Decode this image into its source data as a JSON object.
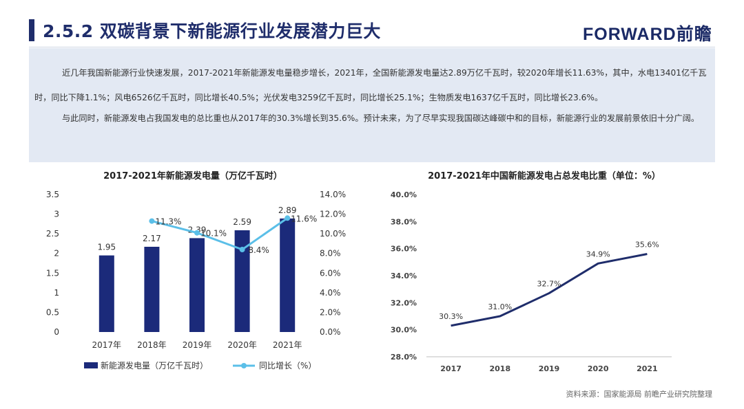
{
  "header": {
    "title": "2.5.2 双碳背景下新能源行业发展潜力巨大",
    "logo": "FORWARD前瞻"
  },
  "paragraphs": [
    "近几年我国新能源行业快速发展，2017-2021年新能源发电量稳步增长，2021年，全国新能源发电量达2.89万亿千瓦时，较2020年增长11.63%，其中，水电13401亿千瓦时，同比下降1.1%；风电6526亿千瓦时，同比增长40.5%；光伏发电3259亿千瓦时，同比增长25.1%；生物质发电1637亿千瓦时，同比增长23.6%。",
    "与此同时，新能源发电占我国发电的总比重也从2017年的30.3%增长到35.6%。预计未来，为了尽早实现我国碳达峰碳中和的目标，新能源行业的发展前景依旧十分广阔。"
  ],
  "source": "资料来源：国家能源局 前瞻产业研究院整理",
  "colors": {
    "bar": "#1b2a7a",
    "line_growth": "#5bbfe8",
    "line_share": "#1f2d6b"
  },
  "chart_data": [
    {
      "type": "bar",
      "title": "2017-2021年新能源发电量（万亿千瓦时）",
      "categories": [
        "2017年",
        "2018年",
        "2019年",
        "2020年",
        "2021年"
      ],
      "series": [
        {
          "name": "新能源发电量（万亿千瓦时）",
          "kind": "bar",
          "axis": "left",
          "values": [
            1.95,
            2.17,
            2.39,
            2.59,
            2.89
          ],
          "labels": [
            "1.95",
            "2.17",
            "2.39",
            "2.59",
            "2.89"
          ]
        },
        {
          "name": "同比增长（%）",
          "kind": "line",
          "axis": "right",
          "values": [
            null,
            11.3,
            10.1,
            8.4,
            11.6
          ],
          "labels": [
            "",
            "11.3%",
            "10.1%",
            "8.4%",
            "11.6%"
          ]
        }
      ],
      "left_axis": {
        "ylim": [
          0,
          3.5
        ],
        "ticks": [
          "0",
          "0.5",
          "1",
          "1.5",
          "2",
          "2.5",
          "3",
          "3.5"
        ]
      },
      "right_axis": {
        "ylim": [
          0,
          14
        ],
        "ticks": [
          "0.0%",
          "2.0%",
          "4.0%",
          "6.0%",
          "8.0%",
          "10.0%",
          "12.0%",
          "14.0%"
        ]
      },
      "legend": {
        "position": "bottom",
        "items": [
          "新能源发电量（万亿千瓦时）",
          "同比增长（%）"
        ]
      }
    },
    {
      "type": "line",
      "title": "2017-2021年中国新能源发电占总发电比重（单位：%）",
      "categories": [
        "2017",
        "2018",
        "2019",
        "2020",
        "2021"
      ],
      "series": [
        {
          "name": "新能源发电占比",
          "values": [
            30.3,
            31.0,
            32.7,
            34.9,
            35.6
          ],
          "labels": [
            "30.3%",
            "31.0%",
            "32.7%",
            "34.9%",
            "35.6%"
          ]
        }
      ],
      "y_axis": {
        "ylim": [
          28,
          40
        ],
        "ticks": [
          "28.0%",
          "30.0%",
          "32.0%",
          "34.0%",
          "36.0%",
          "38.0%",
          "40.0%"
        ]
      }
    }
  ]
}
